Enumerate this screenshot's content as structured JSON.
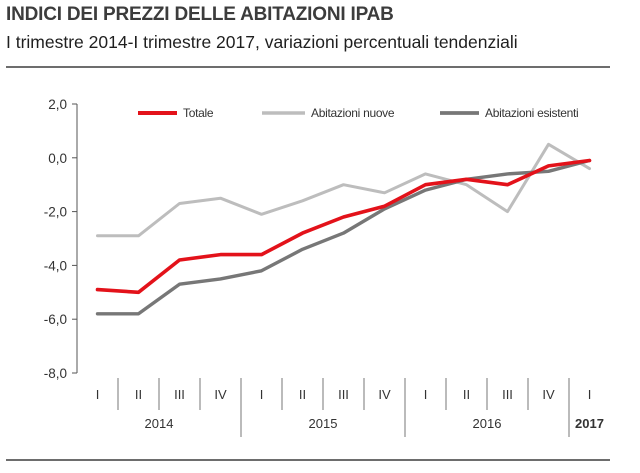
{
  "header": {
    "title": "INDICI DEI PREZZI DELLE ABITAZIONI IPAB",
    "subtitle": "I trimestre 2014-I trimestre 2017, variazioni percentuali tendenziali"
  },
  "chart_data": {
    "type": "line",
    "ylim": [
      -8,
      2
    ],
    "yticks": [
      2,
      0,
      -2,
      -4,
      -6,
      -8
    ],
    "ytick_labels": [
      "2,0",
      "0,0",
      "-2,0",
      "-4,0",
      "-6,0",
      "-8,0"
    ],
    "categories": [
      "I",
      "II",
      "III",
      "IV",
      "I",
      "II",
      "III",
      "IV",
      "I",
      "II",
      "III",
      "IV",
      "I"
    ],
    "years": [
      {
        "label": "2014",
        "start": 0,
        "count": 4
      },
      {
        "label": "2015",
        "start": 4,
        "count": 4
      },
      {
        "label": "2016",
        "start": 8,
        "count": 4
      },
      {
        "label": "2017",
        "start": 12,
        "count": 1
      }
    ],
    "legend_position": "top",
    "series": [
      {
        "name": "Totale",
        "color": "#e3121a",
        "width": 3.6,
        "values": [
          -4.9,
          -5.0,
          -3.8,
          -3.6,
          -3.6,
          -2.8,
          -2.2,
          -1.8,
          -1.0,
          -0.8,
          -1.0,
          -0.3,
          -0.1
        ]
      },
      {
        "name": "Abitazioni nuove",
        "color": "#bdbdbd",
        "width": 3,
        "values": [
          -2.9,
          -2.9,
          -1.7,
          -1.5,
          -2.1,
          -1.6,
          -1.0,
          -1.3,
          -0.6,
          -1.0,
          -2.0,
          0.5,
          -0.4
        ]
      },
      {
        "name": "Abitazioni esistenti",
        "color": "#777777",
        "width": 3.4,
        "values": [
          -5.8,
          -5.8,
          -4.7,
          -4.5,
          -4.2,
          -3.4,
          -2.8,
          -1.9,
          -1.2,
          -0.8,
          -0.6,
          -0.5,
          -0.1
        ]
      }
    ]
  }
}
